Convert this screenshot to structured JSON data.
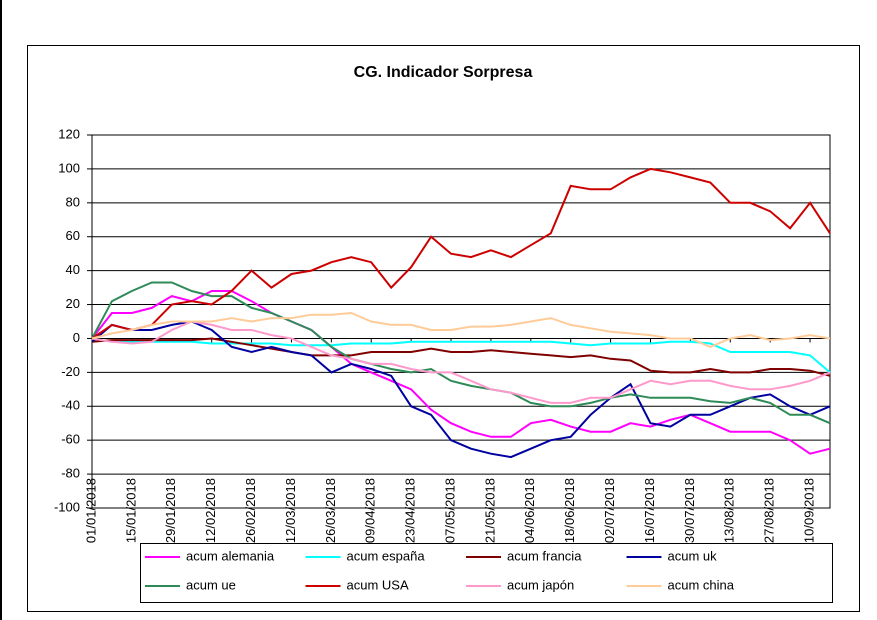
{
  "chart_data": {
    "type": "line",
    "title": "CG. Indicador Sorpresa",
    "categories": [
      "01/01/2018",
      null,
      "15/01/2018",
      null,
      "29/01/2018",
      null,
      "12/02/2018",
      null,
      "26/02/2018",
      null,
      "12/03/2018",
      null,
      "26/03/2018",
      null,
      "09/04/2018",
      null,
      "23/04/2018",
      null,
      "07/05/2018",
      null,
      "21/05/2018",
      null,
      "04/06/2018",
      null,
      "18/06/2018",
      null,
      "02/07/2018",
      null,
      "16/07/2018",
      null,
      "30/07/2018",
      null,
      "13/08/2018",
      null,
      "27/08/2018",
      null,
      "10/09/2018",
      null
    ],
    "ylim": [
      -100,
      120
    ],
    "yticks": [
      -100,
      -80,
      -60,
      -40,
      -20,
      0,
      20,
      40,
      60,
      80,
      100,
      120
    ],
    "grid": true,
    "series": [
      {
        "name": "acum alemania",
        "color": "#ff00ff",
        "values": [
          0,
          15,
          15,
          18,
          25,
          22,
          28,
          28,
          22,
          15,
          10,
          5,
          -5,
          -15,
          -20,
          -25,
          -30,
          -42,
          -50,
          -55,
          -58,
          -58,
          -50,
          -48,
          -52,
          -55,
          -55,
          -50,
          -52,
          -48,
          -45,
          -50,
          -55,
          -55,
          -55,
          -60,
          -68,
          -65
        ]
      },
      {
        "name": "acum españa",
        "color": "#00ffff",
        "values": [
          0,
          -2,
          -2,
          -2,
          -2,
          -2,
          -3,
          -3,
          -3,
          -3,
          -4,
          -4,
          -4,
          -3,
          -3,
          -3,
          -2,
          -2,
          -2,
          -2,
          -2,
          -2,
          -2,
          -2,
          -3,
          -4,
          -3,
          -3,
          -3,
          -2,
          -2,
          -3,
          -8,
          -8,
          -8,
          -8,
          -10,
          -20
        ]
      },
      {
        "name": "acum francia",
        "color": "#800000",
        "values": [
          -2,
          -1,
          -1,
          -1,
          -1,
          -1,
          0,
          -2,
          -4,
          -6,
          -8,
          -10,
          -10,
          -10,
          -8,
          -8,
          -8,
          -6,
          -8,
          -8,
          -7,
          -8,
          -9,
          -10,
          -11,
          -10,
          -12,
          -13,
          -19,
          -20,
          -20,
          -18,
          -20,
          -20,
          -18,
          -18,
          -19,
          -22
        ]
      },
      {
        "name": "acum uk",
        "color": "#0000a0",
        "values": [
          -2,
          8,
          5,
          5,
          8,
          10,
          5,
          -5,
          -8,
          -5,
          -8,
          -10,
          -20,
          -15,
          -18,
          -22,
          -40,
          -45,
          -60,
          -65,
          -68,
          -70,
          -65,
          -60,
          -58,
          -45,
          -35,
          -27,
          -50,
          -52,
          -45,
          -45,
          -40,
          -35,
          -33,
          -40,
          -45,
          -40
        ]
      },
      {
        "name": "acum ue",
        "color": "#2e8b57",
        "values": [
          0,
          22,
          28,
          33,
          33,
          28,
          25,
          25,
          18,
          15,
          10,
          5,
          -5,
          -12,
          -15,
          -18,
          -20,
          -18,
          -25,
          -28,
          -30,
          -32,
          -38,
          -40,
          -40,
          -38,
          -35,
          -33,
          -35,
          -35,
          -35,
          -37,
          -38,
          -35,
          -38,
          -45,
          -45,
          -50
        ]
      },
      {
        "name": "acum USA",
        "color": "#cc0000",
        "values": [
          0,
          8,
          5,
          8,
          20,
          22,
          20,
          28,
          40,
          30,
          38,
          40,
          45,
          48,
          45,
          30,
          42,
          60,
          50,
          48,
          52,
          48,
          55,
          62,
          90,
          88,
          88,
          95,
          100,
          98,
          95,
          92,
          80,
          80,
          75,
          65,
          80,
          62
        ]
      },
      {
        "name": "acum japón",
        "color": "#ff99cc",
        "values": [
          0,
          -2,
          -3,
          -2,
          5,
          10,
          8,
          5,
          5,
          2,
          0,
          -5,
          -10,
          -12,
          -15,
          -15,
          -18,
          -20,
          -20,
          -25,
          -30,
          -32,
          -35,
          -38,
          -38,
          -35,
          -35,
          -30,
          -25,
          -27,
          -25,
          -25,
          -28,
          -30,
          -30,
          -28,
          -25,
          -20
        ]
      },
      {
        "name": "acum china",
        "color": "#ffcc99",
        "values": [
          0,
          3,
          5,
          8,
          10,
          10,
          10,
          12,
          10,
          12,
          12,
          14,
          14,
          15,
          10,
          8,
          8,
          5,
          5,
          7,
          7,
          8,
          10,
          12,
          8,
          6,
          4,
          3,
          2,
          0,
          0,
          -5,
          0,
          2,
          -1,
          0,
          2,
          0
        ]
      }
    ]
  }
}
